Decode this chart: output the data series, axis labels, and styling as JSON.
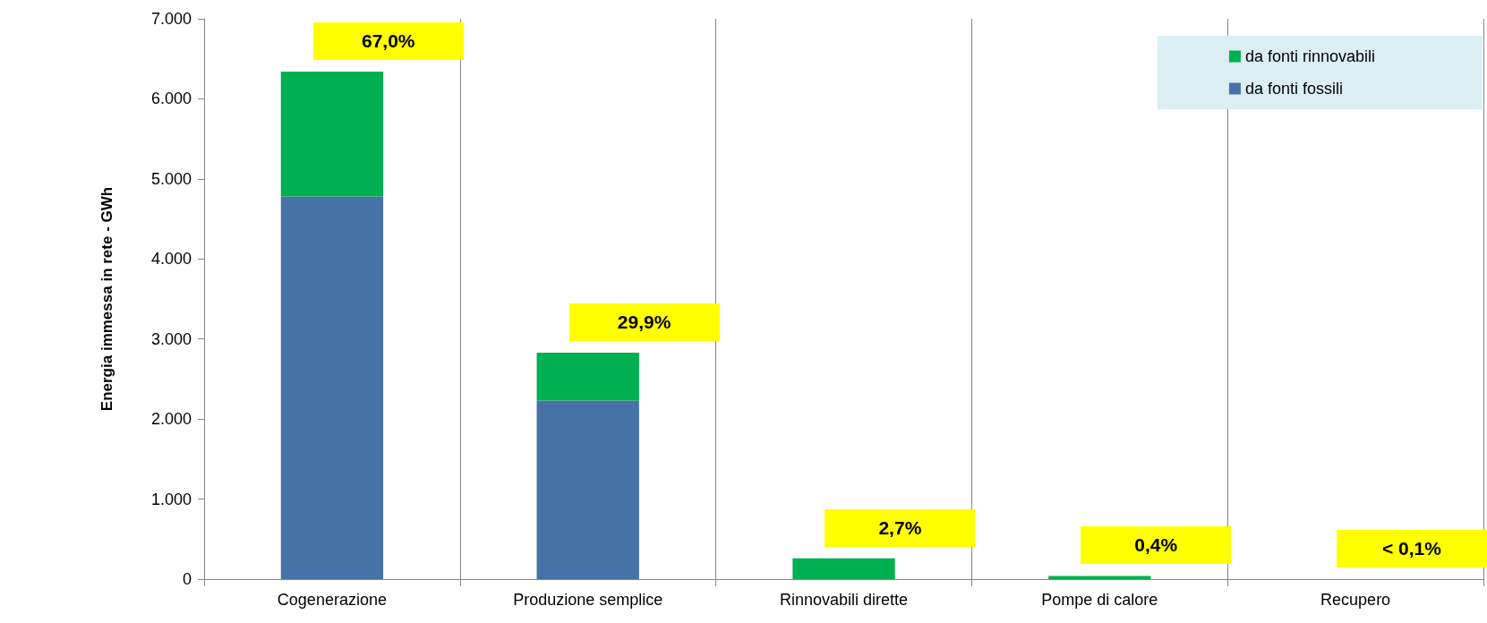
{
  "chart_data": {
    "type": "bar",
    "stacked": true,
    "ylabel": "Energia immessa in rete - GWh",
    "categories": [
      "Cogenerazione",
      "Produzione semplice",
      "Rinnovabili dirette",
      "Pompe di calore",
      "Recupero"
    ],
    "series": [
      {
        "name": "da fonti fossili",
        "color": "#4672a8",
        "values": [
          4780,
          2230,
          0,
          0,
          0
        ]
      },
      {
        "name": "da fonti rinnovabili",
        "color": "#00b050",
        "values": [
          1560,
          600,
          260,
          40,
          0
        ]
      }
    ],
    "ylim": [
      0,
      7000
    ],
    "yticks": [
      0,
      {
        "value": 1000,
        "label": "1.000"
      },
      {
        "value": 2000,
        "label": "2.000"
      },
      {
        "value": 3000,
        "label": "3.000"
      },
      {
        "value": 4000,
        "label": "4.000"
      },
      {
        "value": 5000,
        "label": "5.000"
      },
      {
        "value": 6000,
        "label": "6.000"
      },
      {
        "value": 7000,
        "label": "7.000"
      }
    ],
    "grid": "x",
    "legend": "top right",
    "annotations": [
      "67,0%",
      "29,9%",
      "2,7%",
      "0,4%",
      "< 0,1%"
    ]
  }
}
